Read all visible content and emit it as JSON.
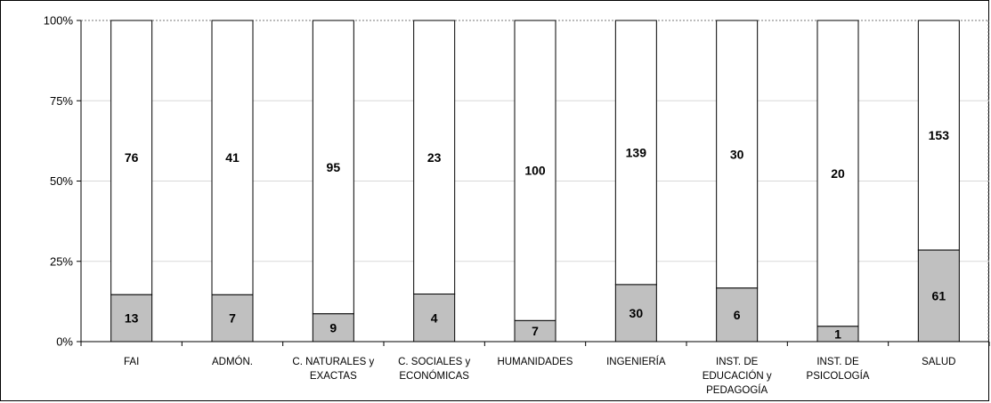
{
  "chart_data": {
    "type": "bar",
    "stacked": "percent",
    "categories": [
      [
        "FAI"
      ],
      [
        "ADMÓN."
      ],
      [
        "C. NATURALES y",
        "EXACTAS"
      ],
      [
        "C. SOCIALES y",
        "ECONÓMICAS"
      ],
      [
        "HUMANIDADES"
      ],
      [
        "INGENIERÍA"
      ],
      [
        "INST. DE",
        "EDUCACIÓN y",
        "PEDAGOGÍA"
      ],
      [
        "INST. DE",
        "PSICOLOGÍA"
      ],
      [
        "SALUD"
      ]
    ],
    "series": [
      {
        "values": [
          13,
          7,
          9,
          4,
          7,
          30,
          6,
          1,
          61
        ],
        "color": "#c0c0c0"
      },
      {
        "values": [
          76,
          41,
          95,
          23,
          100,
          139,
          30,
          20,
          153
        ],
        "color": "#ffffff"
      }
    ],
    "yticks": [
      "0%",
      "25%",
      "50%",
      "75%",
      "100%"
    ],
    "ylim": [
      0,
      100
    ],
    "grid": true,
    "legend": "none",
    "title": "",
    "xlabel": "",
    "ylabel": ""
  }
}
